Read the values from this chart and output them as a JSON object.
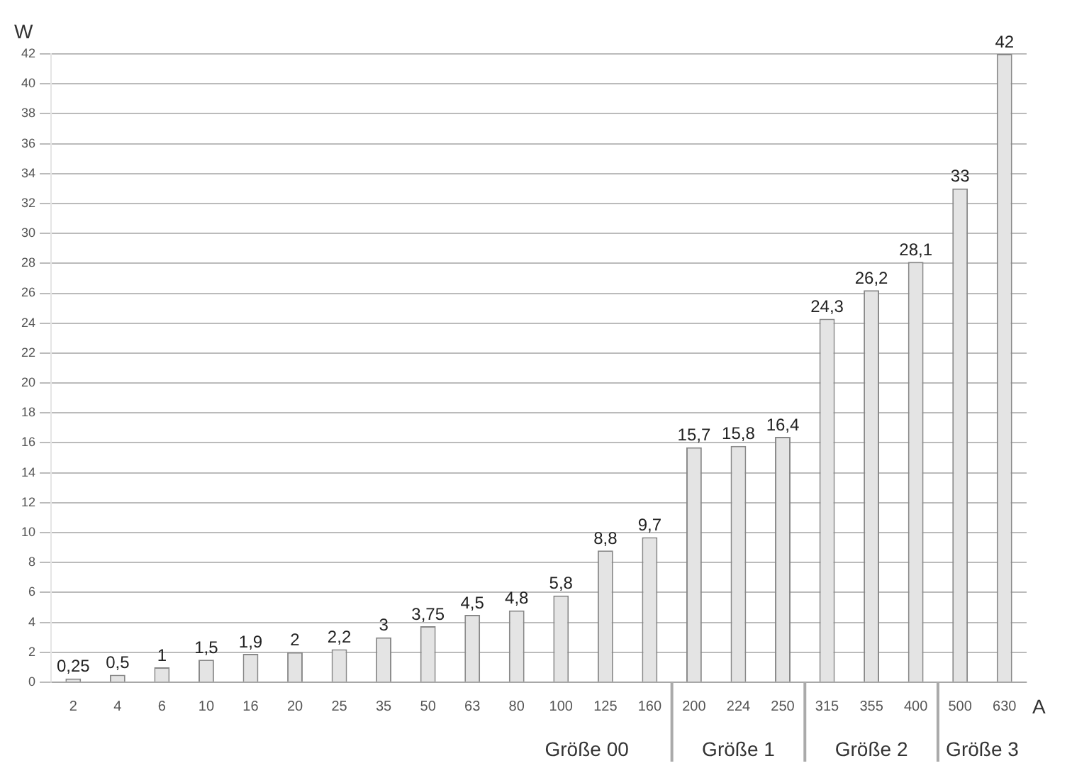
{
  "chart_data": {
    "type": "bar",
    "xlabel": "A",
    "ylabel": "W",
    "categories": [
      "2",
      "4",
      "6",
      "10",
      "16",
      "20",
      "25",
      "35",
      "50",
      "63",
      "80",
      "100",
      "125",
      "160",
      "200",
      "224",
      "250",
      "315",
      "355",
      "400",
      "500",
      "630"
    ],
    "values": [
      0.25,
      0.5,
      1,
      1.5,
      1.9,
      2,
      2.2,
      3,
      3.75,
      4.5,
      4.8,
      5.8,
      8.8,
      9.7,
      15.7,
      15.8,
      16.4,
      24.3,
      26.2,
      28.1,
      33,
      42
    ],
    "value_labels": [
      "0,25",
      "0,5",
      "1",
      "1,5",
      "1,9",
      "2",
      "2,2",
      "3",
      "3,75",
      "4,5",
      "4,8",
      "5,8",
      "8,8",
      "9,7",
      "15,7",
      "15,8",
      "16,4",
      "24,3",
      "26,2",
      "28,1",
      "33",
      "42"
    ],
    "color": "#e4e4e4",
    "ylim": [
      0,
      42
    ],
    "yticks": [
      0,
      2,
      4,
      6,
      8,
      10,
      12,
      14,
      16,
      18,
      20,
      22,
      24,
      26,
      28,
      30,
      32,
      34,
      36,
      38,
      40,
      42
    ],
    "grid": "y",
    "legend": false,
    "annotations": [
      "Größe 00",
      "Größe 1",
      "Größe 2",
      "Größe 3"
    ]
  }
}
